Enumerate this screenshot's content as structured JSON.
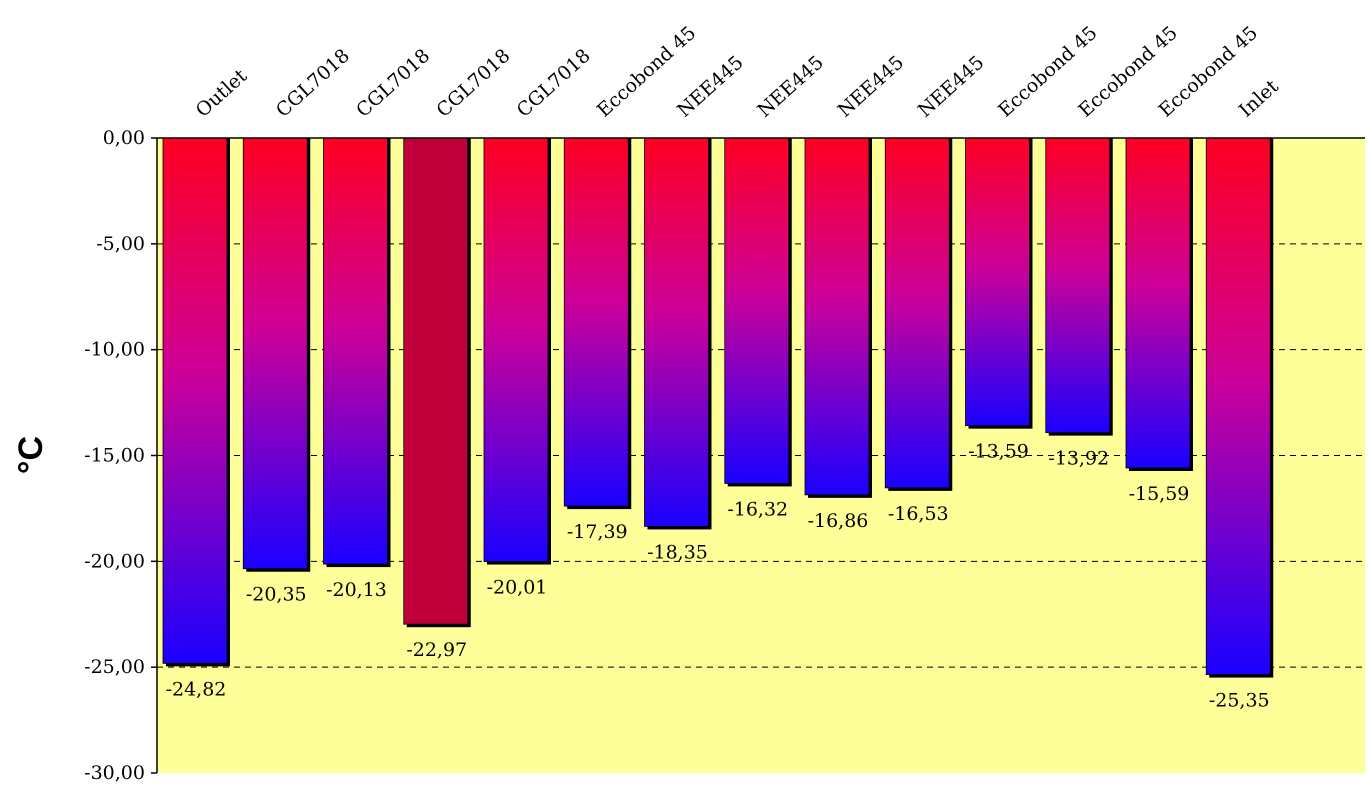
{
  "chart_data": {
    "type": "bar",
    "title": "",
    "xlabel": "",
    "ylabel": "°C",
    "ylim": [
      -30,
      0
    ],
    "yticks": [
      0,
      -5,
      -10,
      -15,
      -20,
      -25,
      -30
    ],
    "ytick_labels": [
      "0,00",
      "-5,00",
      "-10,00",
      "-15,00",
      "-20,00",
      "-25,00",
      "-30,00"
    ],
    "grid": "horizontal dashed",
    "categories": [
      "Outlet",
      "CGL7018",
      "CGL7018",
      "CGL7018",
      "CGL7018",
      "Eccobond 45",
      "NEE445",
      "NEE445",
      "NEE445",
      "NEE445",
      "Eccobond 45",
      "Eccobond 45",
      "Eccobond 45",
      "Inlet"
    ],
    "values": [
      -24.82,
      -20.35,
      -20.13,
      -22.97,
      -20.01,
      -17.39,
      -18.35,
      -16.32,
      -16.86,
      -16.53,
      -13.59,
      -13.92,
      -15.59,
      -25.35
    ],
    "value_labels": [
      "-24,82",
      "-20,35",
      "-20,13",
      "-22,97",
      "-20,01",
      "-17,39",
      "-18,35",
      "-16,32",
      "-16,86",
      "-16,53",
      "-13,59",
      "-13,92",
      "-15,59",
      "-25,35"
    ],
    "highlighted_index": 3,
    "colors": {
      "plot_background": "#ffff99",
      "gradient_top": "#ff0022",
      "gradient_mid": "#cc0099",
      "gradient_bottom": "#1a00ff",
      "highlight_bar": "#c0003a",
      "grid": "#000000"
    }
  }
}
